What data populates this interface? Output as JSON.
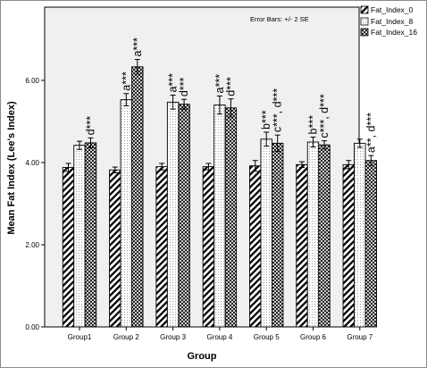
{
  "chart_data": {
    "type": "bar",
    "categories": [
      "Group1",
      "Group 2",
      "Group 3",
      "Group 4",
      "Group 5",
      "Group 6",
      "Group 7"
    ],
    "xlabel": "Group",
    "ylabel": "Mean Fat Index (Lee's Index)",
    "ylim": [
      0,
      7.75
    ],
    "yticks": [
      "0.00",
      "2.00",
      "4.00",
      "6.00"
    ],
    "ytick_values": [
      0,
      2,
      4,
      6
    ],
    "error_bar_note": "Error Bars: +/- 2 SE",
    "grid": false,
    "legend_position": "top-right outside",
    "series": [
      {
        "name": "Fat_Index_0",
        "pattern": "diagonal-hatch",
        "values": [
          3.88,
          3.82,
          3.9,
          3.9,
          3.92,
          3.95,
          3.95
        ],
        "err": [
          0.1,
          0.07,
          0.08,
          0.08,
          0.13,
          0.07,
          0.1
        ]
      },
      {
        "name": "Fat_Index_8",
        "pattern": "dotted",
        "values": [
          4.42,
          5.53,
          5.47,
          5.4,
          4.57,
          4.5,
          4.47
        ],
        "err": [
          0.1,
          0.15,
          0.17,
          0.22,
          0.17,
          0.12,
          0.1
        ]
      },
      {
        "name": "Fat_Index_16",
        "pattern": "crosshatch",
        "values": [
          4.48,
          6.33,
          5.42,
          5.33,
          4.47,
          4.43,
          4.05
        ],
        "err": [
          0.12,
          0.18,
          0.12,
          0.22,
          0.2,
          0.1,
          0.12
        ]
      }
    ],
    "annotations": [
      {
        "group": 0,
        "series": 2,
        "text": "d***"
      },
      {
        "group": 1,
        "series": 1,
        "text": "a***"
      },
      {
        "group": 1,
        "series": 2,
        "text": "a***"
      },
      {
        "group": 2,
        "series": 1,
        "text": "a***"
      },
      {
        "group": 2,
        "series": 2,
        "text": "d***"
      },
      {
        "group": 3,
        "series": 1,
        "text": "a***"
      },
      {
        "group": 3,
        "series": 2,
        "text": "d***"
      },
      {
        "group": 4,
        "series": 1,
        "text": "b***"
      },
      {
        "group": 4,
        "series": 2,
        "text": "c***, d***"
      },
      {
        "group": 5,
        "series": 1,
        "text": "b***"
      },
      {
        "group": 5,
        "series": 2,
        "text": "c***, d***"
      },
      {
        "group": 6,
        "series": 2,
        "text": "a**, d***"
      }
    ]
  }
}
